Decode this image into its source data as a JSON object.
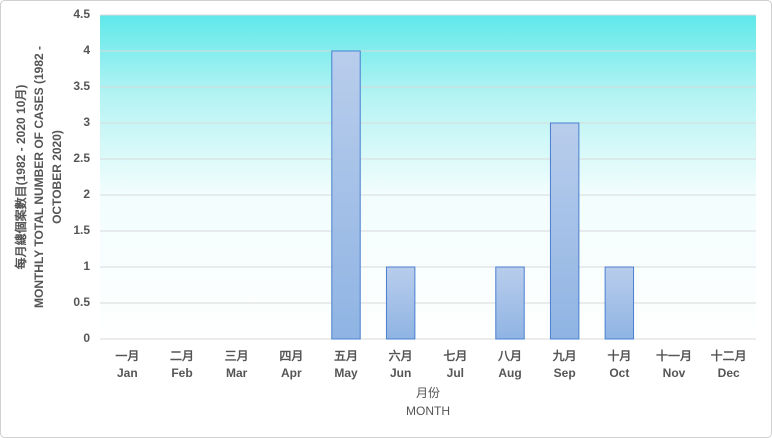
{
  "chart_data": {
    "type": "bar",
    "categories": [
      "Jan",
      "Feb",
      "Mar",
      "Apr",
      "May",
      "Jun",
      "Jul",
      "Aug",
      "Sep",
      "Oct",
      "Nov",
      "Dec"
    ],
    "categories_zh": [
      "一月",
      "二月",
      "三月",
      "四月",
      "五月",
      "六月",
      "七月",
      "八月",
      "九月",
      "十月",
      "十一月",
      "十二月"
    ],
    "values": [
      0,
      0,
      0,
      0,
      4,
      1,
      0,
      1,
      3,
      1,
      0,
      0
    ],
    "color": "#8fb4e3",
    "ylim": [
      0,
      4.5
    ],
    "yticks": [
      0,
      0.5,
      1,
      1.5,
      2,
      2.5,
      3,
      3.5,
      4,
      4.5
    ],
    "grid": true,
    "x_label": [
      "月份",
      "MONTH"
    ],
    "y_label": [
      "每月總個案數目(1982 - 2020 10月)",
      "MONTHLY TOTAL NUMBER OF CASES (1982 -",
      "OCTOBER 2020)"
    ]
  }
}
